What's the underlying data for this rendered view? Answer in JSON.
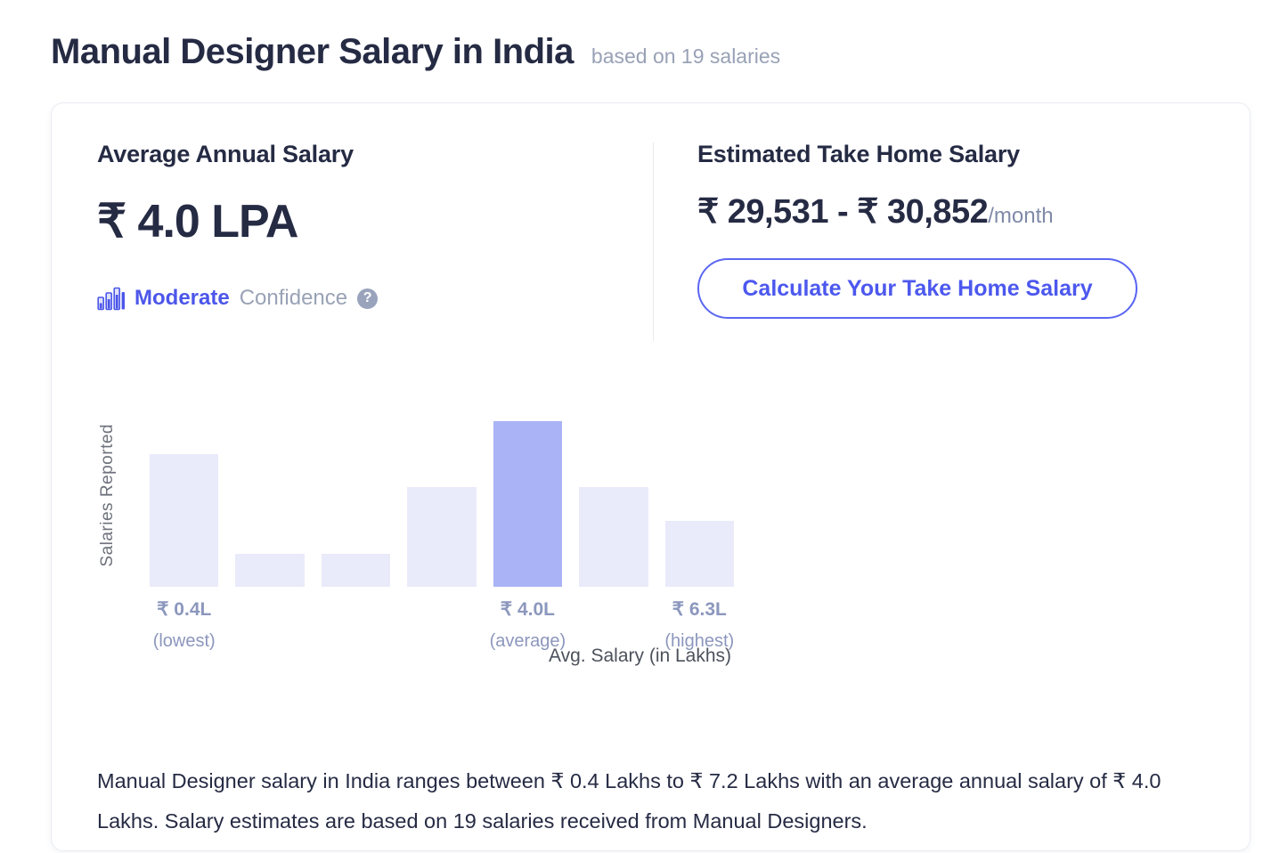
{
  "page": {
    "title": "Manual Designer Salary in India",
    "subtitle": "based on 19 salaries"
  },
  "colors": {
    "accent": "#4c56e9",
    "dark_text": "#262b44",
    "muted_text": "#98a1b6",
    "bar": "#e9ebfa",
    "bar_highlight": "#aab3f6"
  },
  "average_salary": {
    "heading": "Average Annual Salary",
    "amount": "₹ 4.0 LPA",
    "confidence_level": "Moderate",
    "confidence_word": "Confidence",
    "help_icon": "question-mark",
    "confidence_icon": "bar-chart"
  },
  "take_home": {
    "heading": "Estimated Take Home Salary",
    "range_from": "₹ 29,531",
    "range_separator": " - ",
    "range_to": "₹ 30,852",
    "period": "/month",
    "button_label": "Calculate Your Take Home Salary"
  },
  "chart_data": {
    "type": "bar",
    "title": "",
    "ylabel": "Salaries Reported",
    "xlabel": "Avg. Salary (in Lakhs)",
    "values": [
      4,
      1,
      1,
      3,
      5,
      3,
      2
    ],
    "ymax": 5,
    "highlight_index": 4,
    "grid": false,
    "legend": false,
    "x_tick_labels": [
      {
        "index": 0,
        "label": "₹ 0.4L",
        "sublabel": "(lowest)"
      },
      {
        "index": 4,
        "label": "₹ 4.0L",
        "sublabel": "(average)"
      },
      {
        "index": 6,
        "label": "₹ 6.3L",
        "sublabel": "(highest)"
      }
    ],
    "bar_color": "#e9ebfa",
    "highlight_color": "#aab3f6"
  },
  "description": "Manual Designer salary in India ranges between ₹ 0.4 Lakhs to ₹ 7.2 Lakhs with an average annual salary of ₹ 4.0 Lakhs. Salary estimates are based on 19 salaries received from Manual Designers."
}
